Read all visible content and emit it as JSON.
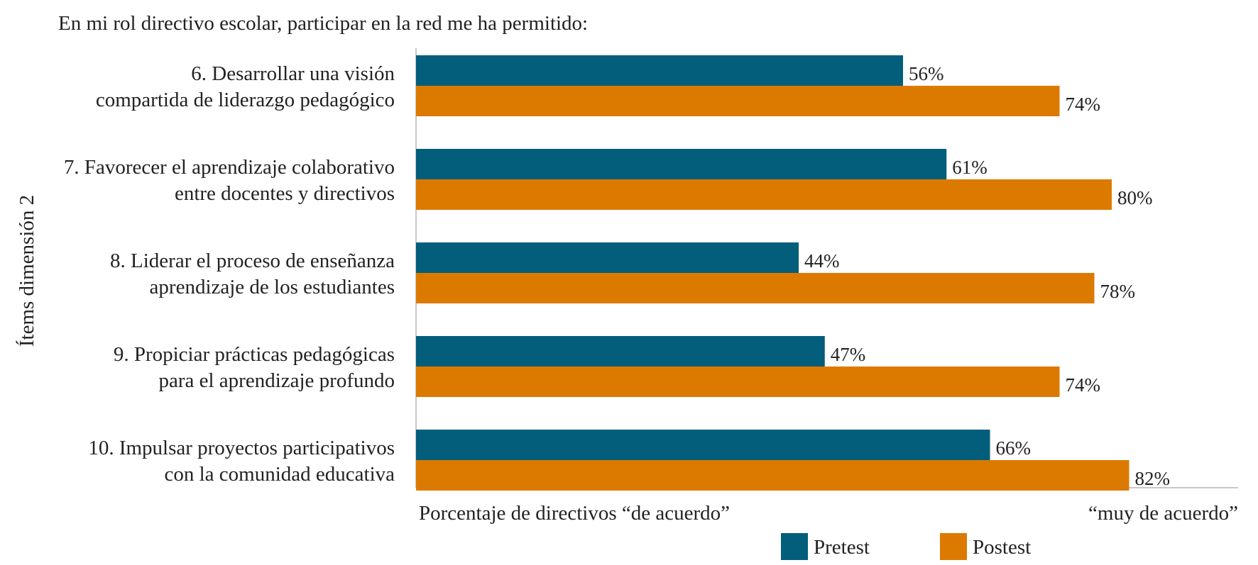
{
  "chart_data": {
    "type": "bar",
    "orientation": "horizontal",
    "title": "En mi rol directivo escolar, participar en la red me ha permitido:",
    "ylabel": "Ítems dimensión 2",
    "xlabel": "Porcentaje de directivos “de acuerdo”",
    "xlabel_right": "“muy de acuerdo”",
    "xlim": [
      0,
      100
    ],
    "grid": false,
    "legend_position": "bottom",
    "value_suffix": "%",
    "categories": [
      [
        "6. Desarrollar una visión",
        "compartida de liderazgo pedagógico"
      ],
      [
        "7. Favorecer el aprendizaje colaborativo",
        "entre docentes y directivos"
      ],
      [
        "8. Liderar el proceso de enseñanza",
        "aprendizaje de los estudiantes"
      ],
      [
        "9. Propiciar prácticas pedagógicas",
        "para el aprendizaje profundo"
      ],
      [
        "10. Impulsar proyectos participativos",
        "con la comunidad educativa"
      ]
    ],
    "series": [
      {
        "name": "Pretest",
        "color": "#025e7a",
        "values": [
          56,
          61,
          44,
          47,
          66
        ]
      },
      {
        "name": "Postest",
        "color": "#dc7a00",
        "values": [
          74,
          80,
          78,
          74,
          82
        ]
      }
    ]
  }
}
